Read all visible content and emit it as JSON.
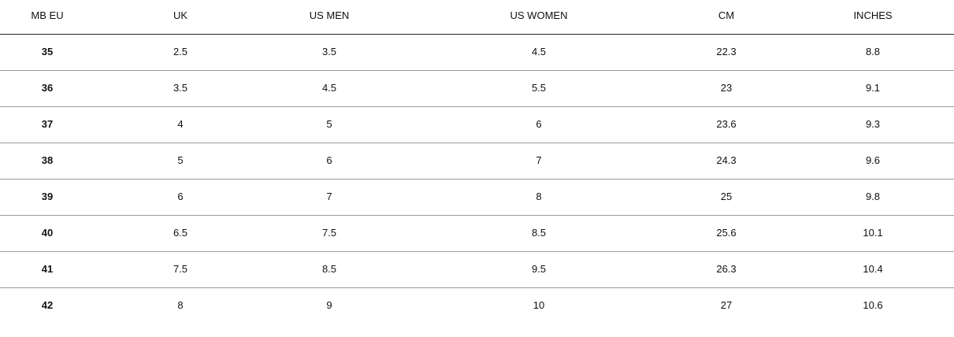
{
  "table": {
    "header": [
      "MB EU",
      "UK",
      "US MEN",
      "US WOMEN",
      "CM",
      "INCHES"
    ],
    "rows": [
      [
        "35",
        "2.5",
        "3.5",
        "4.5",
        "22.3",
        "8.8"
      ],
      [
        "36",
        "3.5",
        "4.5",
        "5.5",
        "23",
        "9.1"
      ],
      [
        "37",
        "4",
        "5",
        "6",
        "23.6",
        "9.3"
      ],
      [
        "38",
        "5",
        "6",
        "7",
        "24.3",
        "9.6"
      ],
      [
        "39",
        "6",
        "7",
        "8",
        "25",
        "9.8"
      ],
      [
        "40",
        "6.5",
        "7.5",
        "8.5",
        "25.6",
        "10.1"
      ],
      [
        "41",
        "7.5",
        "8.5",
        "9.5",
        "26.3",
        "10.4"
      ],
      [
        "42",
        "8",
        "9",
        "10",
        "27",
        "10.6"
      ]
    ]
  }
}
